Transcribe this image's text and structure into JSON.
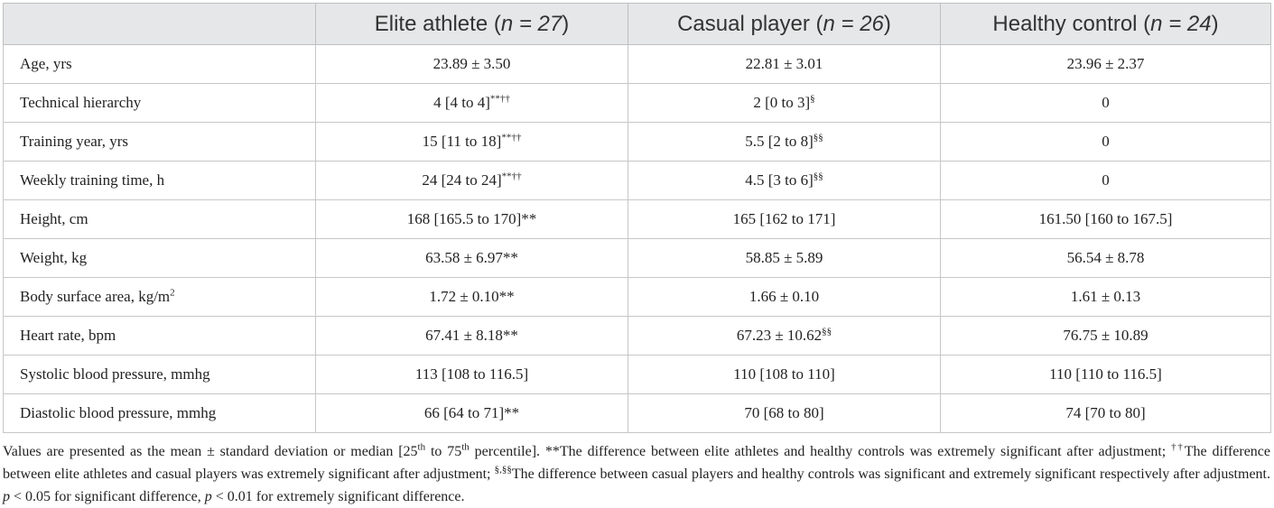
{
  "table": {
    "headers": [
      {
        "text": "",
        "n": ""
      },
      {
        "text": "Elite athlete (",
        "n": "n = 27",
        "close": ")"
      },
      {
        "text": "Casual player (",
        "n": "n = 26",
        "close": ")"
      },
      {
        "text": "Healthy control (",
        "n": "n = 24",
        "close": ")"
      }
    ],
    "rows": [
      {
        "label": "Age, yrs",
        "label_sup": "",
        "cells": [
          {
            "v": "23.89 ± 3.50",
            "s": ""
          },
          {
            "v": "22.81 ± 3.01",
            "s": ""
          },
          {
            "v": "23.96 ± 2.37",
            "s": ""
          }
        ]
      },
      {
        "label": "Technical hierarchy",
        "label_sup": "",
        "cells": [
          {
            "v": "4 [4 to 4]",
            "s": "**††"
          },
          {
            "v": "2 [0 to 3]",
            "s": "§"
          },
          {
            "v": "0",
            "s": ""
          }
        ]
      },
      {
        "label": "Training year, yrs",
        "label_sup": "",
        "cells": [
          {
            "v": "15 [11 to 18]",
            "s": "**††"
          },
          {
            "v": "5.5 [2 to 8]",
            "s": "§§"
          },
          {
            "v": "0",
            "s": ""
          }
        ]
      },
      {
        "label": "Weekly training time, h",
        "label_sup": "",
        "cells": [
          {
            "v": "24 [24 to 24]",
            "s": "**††"
          },
          {
            "v": "4.5 [3 to 6]",
            "s": "§§"
          },
          {
            "v": "0",
            "s": ""
          }
        ]
      },
      {
        "label": "Height, cm",
        "label_sup": "",
        "cells": [
          {
            "v": "168 [165.5 to 170]**",
            "s": ""
          },
          {
            "v": "165 [162 to 171]",
            "s": ""
          },
          {
            "v": "161.50 [160 to 167.5]",
            "s": ""
          }
        ]
      },
      {
        "label": "Weight, kg",
        "label_sup": "",
        "cells": [
          {
            "v": "63.58 ± 6.97**",
            "s": ""
          },
          {
            "v": "58.85 ± 5.89",
            "s": ""
          },
          {
            "v": "56.54 ± 8.78",
            "s": ""
          }
        ]
      },
      {
        "label": "Body surface area, kg/m",
        "label_sup": "2",
        "cells": [
          {
            "v": "1.72 ± 0.10**",
            "s": ""
          },
          {
            "v": "1.66 ± 0.10",
            "s": ""
          },
          {
            "v": "1.61 ± 0.13",
            "s": ""
          }
        ]
      },
      {
        "label": "Heart rate, bpm",
        "label_sup": "",
        "cells": [
          {
            "v": "67.41 ± 8.18**",
            "s": ""
          },
          {
            "v": "67.23 ± 10.62",
            "s": "§§"
          },
          {
            "v": "76.75 ± 10.89",
            "s": ""
          }
        ]
      },
      {
        "label": "Systolic blood pressure, mmhg",
        "label_sup": "",
        "cells": [
          {
            "v": "113 [108 to 116.5]",
            "s": ""
          },
          {
            "v": "110 [108 to 110]",
            "s": ""
          },
          {
            "v": "110 [110 to 116.5]",
            "s": ""
          }
        ]
      },
      {
        "label": "Diastolic blood pressure, mmhg",
        "label_sup": "",
        "cells": [
          {
            "v": "66 [64 to 71]**",
            "s": ""
          },
          {
            "v": "70 [68 to 80]",
            "s": ""
          },
          {
            "v": "74 [70 to 80]",
            "s": ""
          }
        ]
      }
    ]
  },
  "footnote": {
    "p1": "Values are presented as the mean ± standard deviation or median [25",
    "sup_th1": "th",
    "p2": " to 75",
    "sup_th2": "th",
    "p3": " percentile]. **The difference between elite athletes and healthy controls was extremely significant after adjustment; ",
    "sup_dag": "††",
    "p4": "The difference between elite athletes and casual players was extremely significant after adjustment; ",
    "sup_sec": "§,§§",
    "p5": "The difference between casual players and healthy controls was significant and extremely significant respectively after adjustment. ",
    "p_var1": "p",
    "p6": " < 0.05 for significant difference, ",
    "p_var2": "p",
    "p7": " < 0.01 for extremely significant difference."
  }
}
